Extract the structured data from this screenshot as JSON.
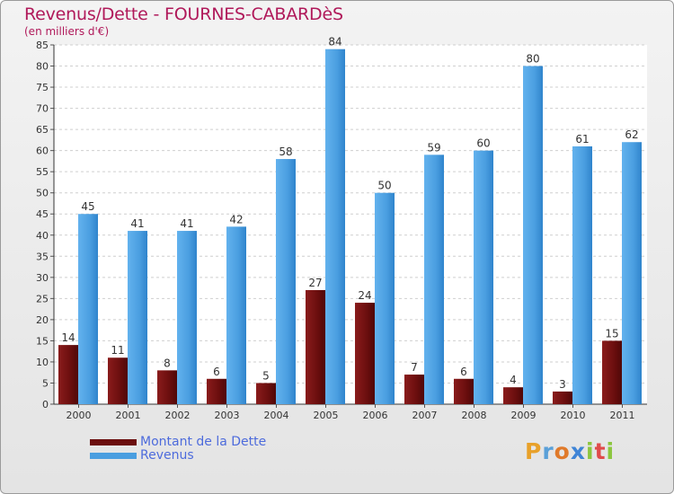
{
  "header": {
    "title": "Revenus/Dette - FOURNES-CABARDèS",
    "subtitle": "(en milliers d'€)"
  },
  "legend": [
    {
      "label": "Montant de la Dette",
      "color": "#6b0e0e"
    },
    {
      "label": "Revenus",
      "color": "#4a9ee0"
    }
  ],
  "logo": {
    "letters": [
      "P",
      "r",
      "o",
      "x",
      "i",
      "t",
      "i"
    ],
    "colors": [
      "#e8a12a",
      "#5aa0d8",
      "#e07a2a",
      "#3f84d6",
      "#8cc63e",
      "#e04b4b",
      "#8cc63e"
    ]
  },
  "chart_data": {
    "type": "bar",
    "title": "Revenus/Dette - FOURNES-CABARDèS",
    "ylabel": "(en milliers d'€)",
    "categories": [
      "2000",
      "2001",
      "2002",
      "2003",
      "2004",
      "2005",
      "2006",
      "2007",
      "2008",
      "2009",
      "2010",
      "2011"
    ],
    "series": [
      {
        "name": "Montant de la Dette",
        "color": "#6b0e0e",
        "values": [
          14,
          11,
          8,
          6,
          5,
          27,
          24,
          7,
          6,
          4,
          3,
          15
        ]
      },
      {
        "name": "Revenus",
        "color": "#4a9ee0",
        "values": [
          45,
          41,
          41,
          42,
          58,
          84,
          50,
          59,
          60,
          80,
          61,
          62
        ]
      }
    ],
    "ylim": [
      0,
      85
    ],
    "yticks": [
      0,
      5,
      10,
      15,
      20,
      25,
      30,
      35,
      40,
      45,
      50,
      55,
      60,
      65,
      70,
      75,
      80,
      85
    ],
    "grid": true
  }
}
